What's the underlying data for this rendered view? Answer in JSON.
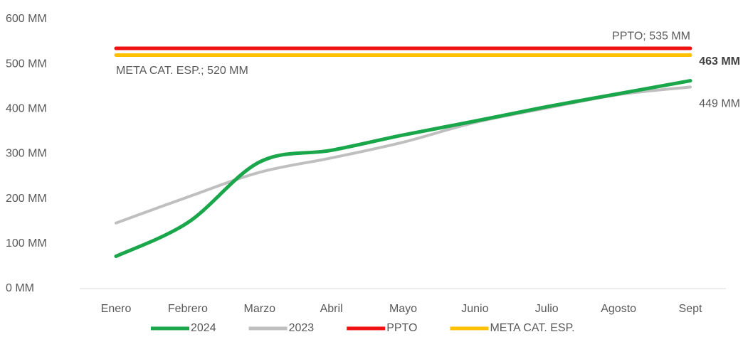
{
  "chart_data": {
    "type": "line",
    "categories": [
      "Enero",
      "Febrero",
      "Marzo",
      "Abril",
      "Mayo",
      "Junio",
      "Julio",
      "Agosto",
      "Sept"
    ],
    "series": [
      {
        "name": "2024",
        "color": "#1aa64a",
        "width": 5,
        "values": [
          72,
          147,
          282,
          308,
          342,
          373,
          405,
          434,
          463
        ],
        "value_labels": [
          null,
          null,
          null,
          null,
          null,
          null,
          null,
          null,
          "463 MM"
        ]
      },
      {
        "name": "2023",
        "color": "#bfbfbf",
        "width": 4,
        "values": [
          146,
          204,
          259,
          291,
          326,
          370,
          402,
          432,
          449
        ],
        "value_labels": [
          null,
          null,
          null,
          null,
          null,
          null,
          null,
          null,
          "449 MM"
        ]
      },
      {
        "name": "PPTO",
        "color": "#ee1111",
        "width": 5,
        "values": [
          535,
          535,
          535,
          535,
          535,
          535,
          535,
          535,
          535
        ],
        "value_labels": [
          null,
          null,
          null,
          null,
          null,
          null,
          null,
          null,
          "PPTO; 535 MM"
        ]
      },
      {
        "name": "META CAT. ESP.",
        "color": "#ffc000",
        "width": 5,
        "values": [
          520,
          520,
          520,
          520,
          520,
          520,
          520,
          520,
          520
        ],
        "value_labels": [
          "META CAT. ESP.; 520 MM",
          null,
          null,
          null,
          null,
          null,
          null,
          null,
          null
        ]
      }
    ],
    "ylim": [
      0,
      600
    ],
    "yticks": [
      {
        "value": 0,
        "label": "0 MM"
      },
      {
        "value": 100,
        "label": "100 MM"
      },
      {
        "value": 200,
        "label": "200 MM"
      },
      {
        "value": 300,
        "label": "300 MM"
      },
      {
        "value": 400,
        "label": "400 MM"
      },
      {
        "value": 500,
        "label": "500 MM"
      },
      {
        "value": 600,
        "label": "600 MM"
      }
    ],
    "grid": false,
    "legend": "bottom"
  }
}
